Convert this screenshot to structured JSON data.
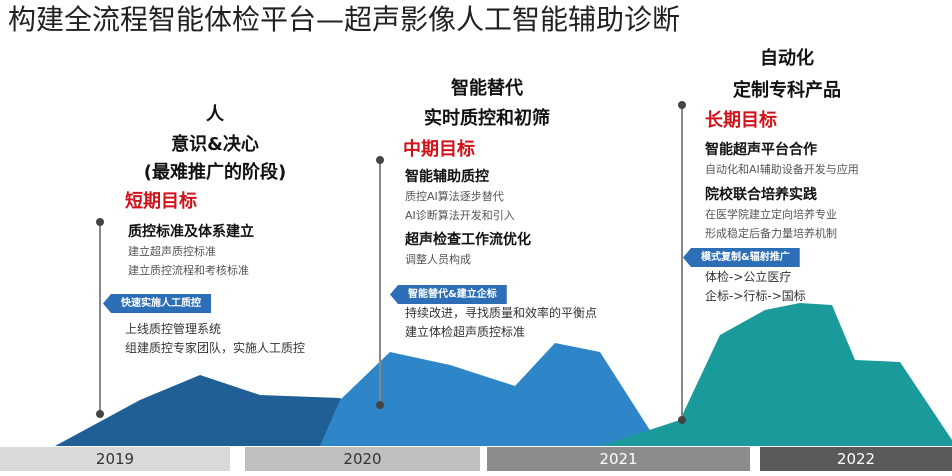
{
  "title": "构建全流程智能体检平台—超声影像人工智能辅助诊断",
  "stages": [
    {
      "heading": [
        "人",
        "意识&决心",
        "(最难推广的阶段)"
      ],
      "goal": "短期目标",
      "items": [
        {
          "title": "质控标准及体系建立",
          "details": [
            "建立超声质控标准",
            "建立质控流程和考核标准"
          ]
        }
      ],
      "tag": "快速实施人工质控",
      "notes": [
        "上线质控管理系统",
        "组建质控专家团队，实施人工质控"
      ]
    },
    {
      "heading": [
        "智能替代",
        "实时质控和初筛"
      ],
      "goal": "中期目标",
      "items": [
        {
          "title": "智能辅助质控",
          "details": [
            "质控AI算法逐步替代",
            "AI诊断算法开发和引入"
          ]
        },
        {
          "title": "超声检查工作流优化",
          "details": [
            "调整人员构成"
          ]
        }
      ],
      "tag": "智能替代&建立企标",
      "notes": [
        "持续改进，寻找质量和效率的平衡点",
        "建立体检超声质控标准"
      ]
    },
    {
      "heading": [
        "自动化",
        "定制专科产品"
      ],
      "goal": "长期目标",
      "items": [
        {
          "title": "智能超声平台合作",
          "details": [
            "自动化和AI辅助设备开发与应用"
          ]
        },
        {
          "title": "院校联合培养实践",
          "details": [
            "在医学院建立定向培养专业",
            "形成稳定后备力量培养机制"
          ]
        }
      ],
      "tag": "模式复制&辐射推广",
      "notes": [
        "体检->公立医疗",
        "企标->行标->国标"
      ]
    }
  ],
  "timeline": [
    "2019",
    "2020",
    "2021",
    "2022"
  ]
}
